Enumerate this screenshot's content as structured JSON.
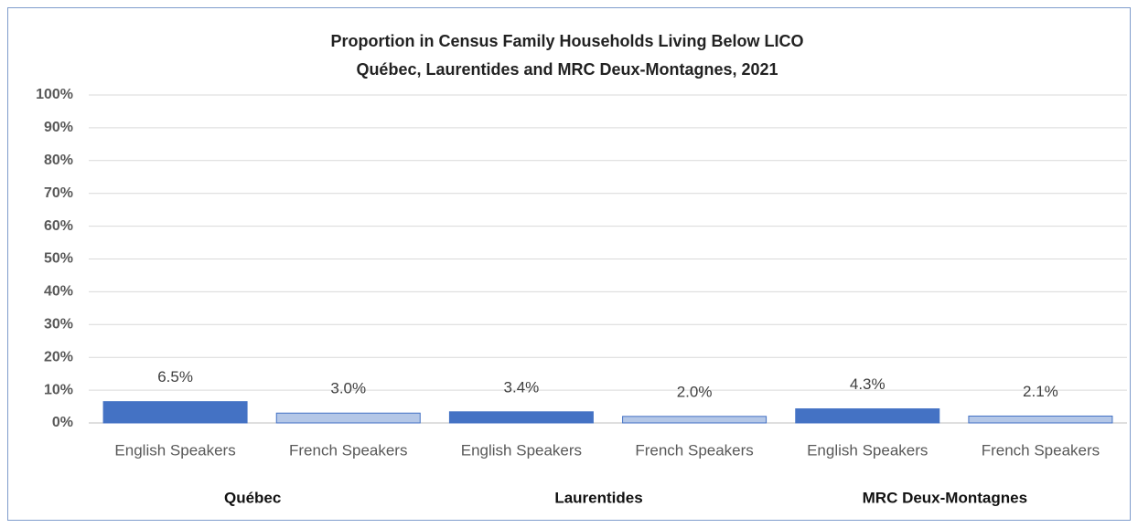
{
  "chart_data": {
    "type": "bar",
    "title": "Proportion in Census Family Households Living Below LICO",
    "subtitle": "Québec, Laurentides and MRC Deux-Montagnes, 2021",
    "categories": [
      "English Speakers",
      "French Speakers",
      "English Speakers",
      "French Speakers",
      "English Speakers",
      "French Speakers"
    ],
    "groups": [
      "Québec",
      "Laurentides",
      "MRC Deux-Montagnes"
    ],
    "values": [
      6.5,
      3.0,
      3.4,
      2.0,
      4.3,
      2.1
    ],
    "value_labels": [
      "6.5%",
      "3.0%",
      "3.4%",
      "2.0%",
      "4.3%",
      "2.1%"
    ],
    "colors": [
      "#4472c4",
      "#b4c7e7",
      "#4472c4",
      "#b4c7e7",
      "#4472c4",
      "#b4c7e7"
    ],
    "ylim": [
      0,
      100
    ],
    "yticks": [
      {
        "value": 0,
        "label": "0%"
      },
      {
        "value": 10,
        "label": "10%"
      },
      {
        "value": 20,
        "label": "20%"
      },
      {
        "value": 30,
        "label": "30%"
      },
      {
        "value": 40,
        "label": "40%"
      },
      {
        "value": 50,
        "label": "50%"
      },
      {
        "value": 60,
        "label": "60%"
      },
      {
        "value": 70,
        "label": "70%"
      },
      {
        "value": 80,
        "label": "80%"
      },
      {
        "value": 90,
        "label": "90%"
      },
      {
        "value": 100,
        "label": "100%"
      }
    ],
    "grid": true
  }
}
